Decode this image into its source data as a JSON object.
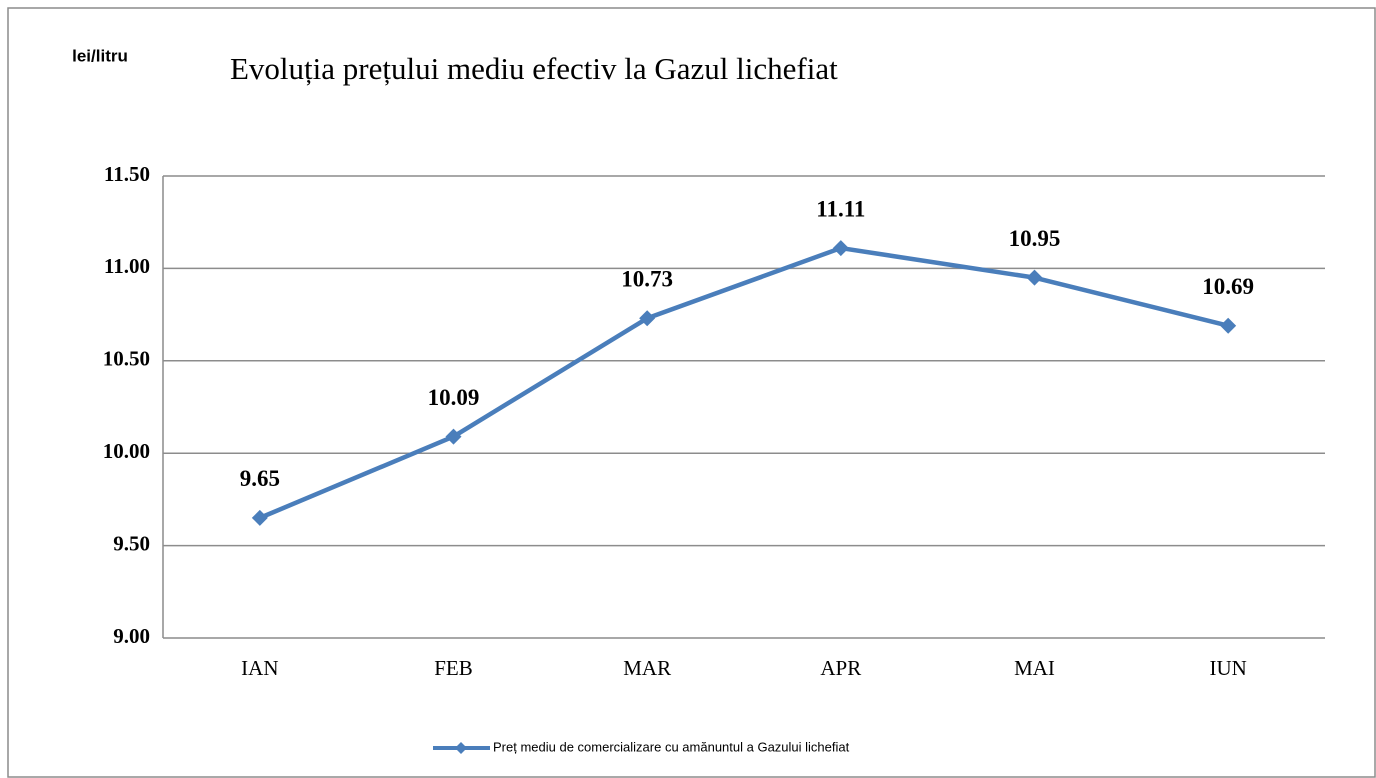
{
  "chart_data": {
    "type": "line",
    "title": "Evoluția prețului mediu efectiv la Gazul lichefiat",
    "y_label": "lei/litru",
    "categories": [
      "IAN",
      "FEB",
      "MAR",
      "APR",
      "MAI",
      "IUN"
    ],
    "series": [
      {
        "name": "Preț mediu de comercializare cu amănuntul a Gazului lichefiat",
        "color": "#4a7ebb",
        "values": [
          9.65,
          10.09,
          10.73,
          11.11,
          10.95,
          10.69
        ]
      }
    ],
    "ylim": [
      9,
      11.5
    ],
    "yticks": [
      {
        "value": 9,
        "label": "9.00"
      },
      {
        "value": 9.5,
        "label": "9.50"
      },
      {
        "value": 10,
        "label": "10.00"
      },
      {
        "value": 10.5,
        "label": "10.50"
      },
      {
        "value": 11,
        "label": "11.00"
      },
      {
        "value": 11.5,
        "label": "11.50"
      }
    ],
    "grid": true,
    "legend": "bottom"
  }
}
